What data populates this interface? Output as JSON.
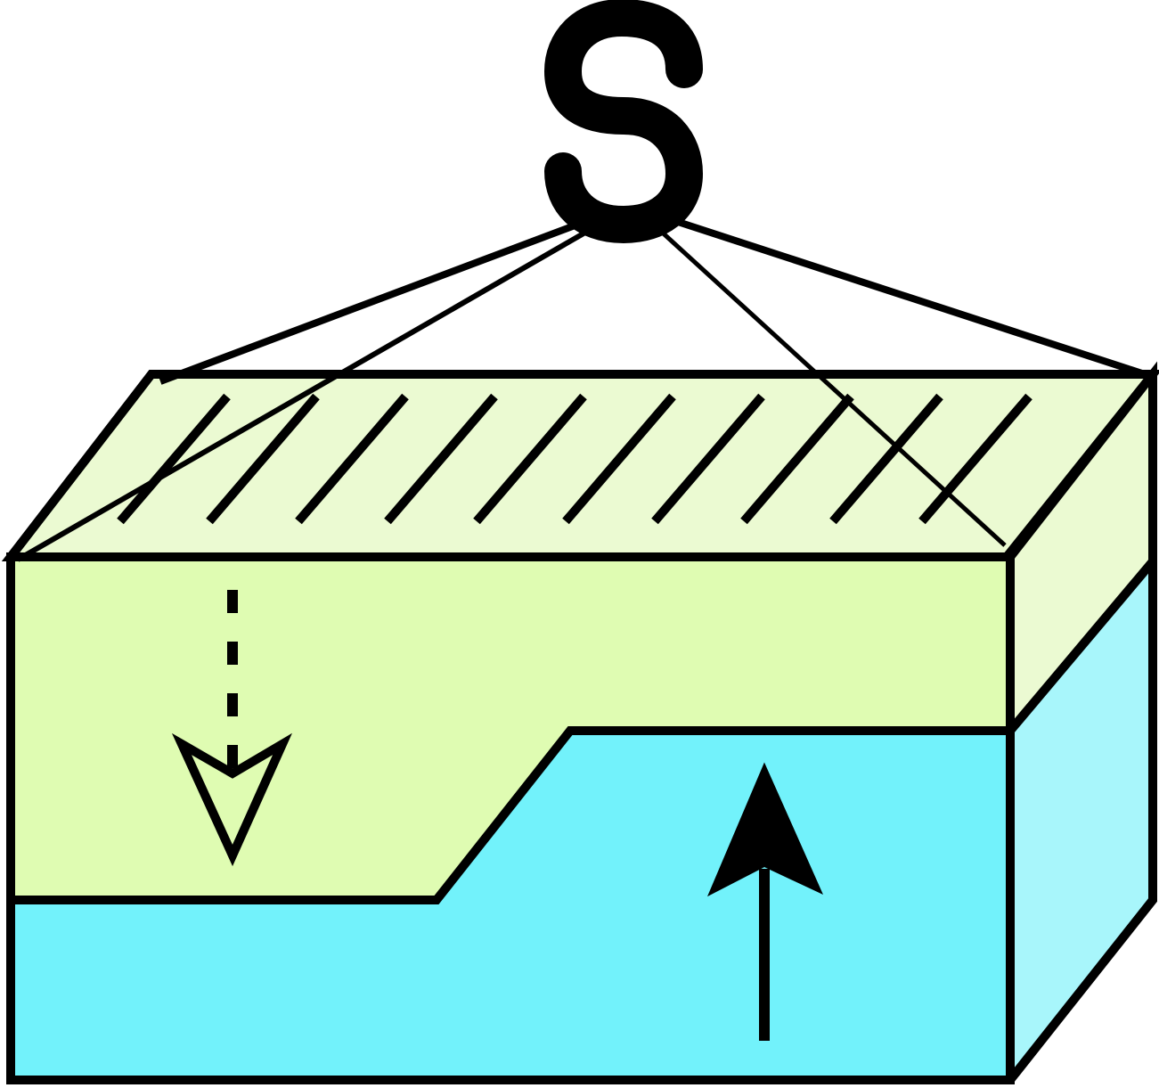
{
  "colors": {
    "background": "#ffffff",
    "stroke": "#000000",
    "top_face": "#ebfad2",
    "upper_layer_front": "#dffcb2",
    "upper_layer_side": "#ebfad2",
    "lower_layer_front": "#72f2fb",
    "lower_layer_side": "#a8f6fb"
  },
  "icons": {
    "hook": "s-hook-icon",
    "hatching": "hatch-lines",
    "down_arrow": "dashed-hollow-arrow-down-icon",
    "up_arrow": "solid-arrow-up-icon"
  }
}
